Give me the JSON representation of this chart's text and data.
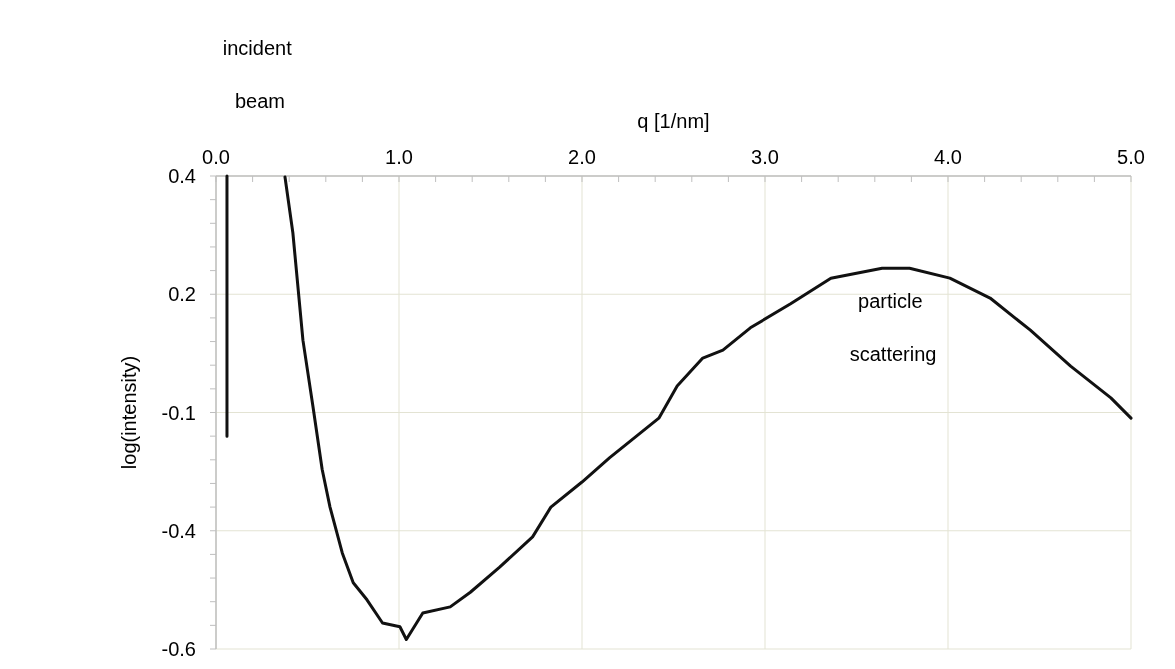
{
  "chart_data": {
    "type": "line",
    "xlabel": "q [1/nm]",
    "ylabel": "log(intensity)",
    "xlim": [
      0,
      5
    ],
    "xticks": [
      {
        "value": 0,
        "label": "0.0"
      },
      {
        "value": 1,
        "label": "1.0"
      },
      {
        "value": 2,
        "label": "2.0"
      },
      {
        "value": 3,
        "label": "3.0"
      },
      {
        "value": 4,
        "label": "4.0"
      },
      {
        "value": 5,
        "label": "5.0"
      }
    ],
    "ylim": [
      -0.6,
      0.4
    ],
    "yticks": [
      {
        "value": 0.4,
        "label": "0.4"
      },
      {
        "value": 0.15,
        "label": "0.2"
      },
      {
        "value": -0.1,
        "label": "-0.1"
      },
      {
        "value": -0.35,
        "label": "-0.4"
      },
      {
        "value": -0.6,
        "label": "-0.6"
      }
    ],
    "grid": true,
    "marker": "none",
    "line_style": "solid",
    "series": [
      {
        "color": "#111111",
        "x": [
          0.06,
          0.06,
          0.2,
          0.377,
          0.42,
          0.475,
          0.53,
          0.58,
          0.623,
          0.69,
          0.75,
          0.825,
          0.91,
          1.005,
          1.04,
          1.13,
          1.28,
          1.39,
          1.55,
          1.73,
          1.83,
          2.0,
          2.15,
          2.42,
          2.52,
          2.66,
          2.77,
          2.92,
          3.14,
          3.36,
          3.64,
          3.79,
          4.01,
          4.23,
          4.45,
          4.67,
          4.89,
          5.0
        ],
        "values": [
          -0.15,
          0.4,
          null,
          0.398,
          0.28,
          0.053,
          -0.088,
          -0.22,
          -0.3,
          -0.397,
          -0.46,
          -0.496,
          -0.545,
          -0.553,
          -0.58,
          -0.524,
          -0.511,
          -0.48,
          -0.427,
          -0.363,
          -0.3,
          -0.247,
          -0.196,
          -0.112,
          -0.044,
          0.015,
          0.032,
          0.079,
          0.13,
          0.184,
          0.205,
          0.205,
          0.184,
          0.142,
          0.074,
          -0.002,
          -0.069,
          -0.112
        ]
      }
    ],
    "annotations": [
      "incident beam",
      "particle scattering"
    ]
  }
}
